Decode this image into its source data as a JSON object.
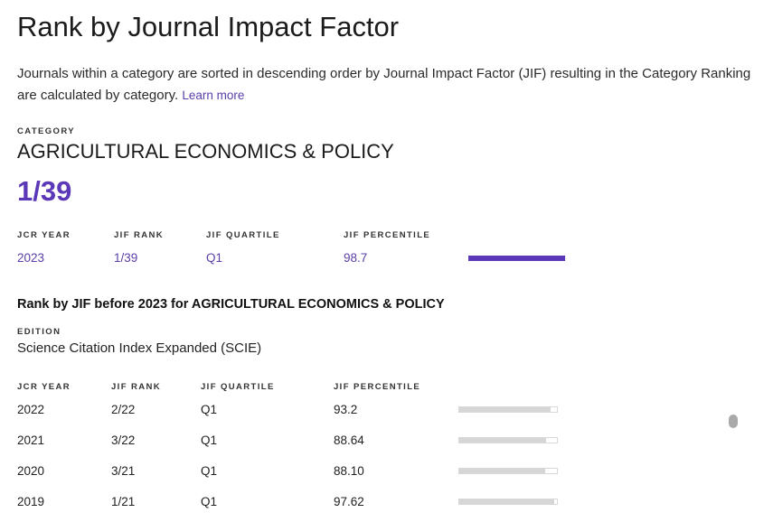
{
  "title": "Rank by Journal Impact Factor",
  "description": "Journals within a category are sorted in descending order by Journal Impact Factor (JIF) resulting in the Category Ranking are calculated by category.",
  "learn_more": "Learn more",
  "category_caption": "CATEGORY",
  "category": "AGRICULTURAL ECONOMICS & POLICY",
  "rank": "1/39",
  "current": {
    "headers": {
      "year": "JCR YEAR",
      "rank": "JIF RANK",
      "quartile": "JIF QUARTILE",
      "percentile": "JIF PERCENTILE"
    },
    "row": {
      "year": "2023",
      "rank": "1/39",
      "quartile": "Q1",
      "percentile": "98.7",
      "percentile_value": 98.7
    }
  },
  "history": {
    "heading": "Rank by JIF before 2023 for AGRICULTURAL ECONOMICS & POLICY",
    "edition_caption": "EDITION",
    "edition": "Science Citation Index Expanded (SCIE)",
    "headers": {
      "year": "JCR YEAR",
      "rank": "JIF RANK",
      "quartile": "JIF QUARTILE",
      "percentile": "JIF PERCENTILE"
    },
    "rows": [
      {
        "year": "2022",
        "rank": "2/22",
        "quartile": "Q1",
        "percentile": "93.2",
        "percentile_value": 93.2
      },
      {
        "year": "2021",
        "rank": "3/22",
        "quartile": "Q1",
        "percentile": "88.64",
        "percentile_value": 88.64
      },
      {
        "year": "2020",
        "rank": "3/21",
        "quartile": "Q1",
        "percentile": "88.10",
        "percentile_value": 88.1
      },
      {
        "year": "2019",
        "rank": "1/21",
        "quartile": "Q1",
        "percentile": "97.62",
        "percentile_value": 97.62
      }
    ]
  },
  "colors": {
    "accent": "#5b38b8",
    "bar_track": "#eeeeee",
    "bar_history": "#d6d6d6"
  }
}
